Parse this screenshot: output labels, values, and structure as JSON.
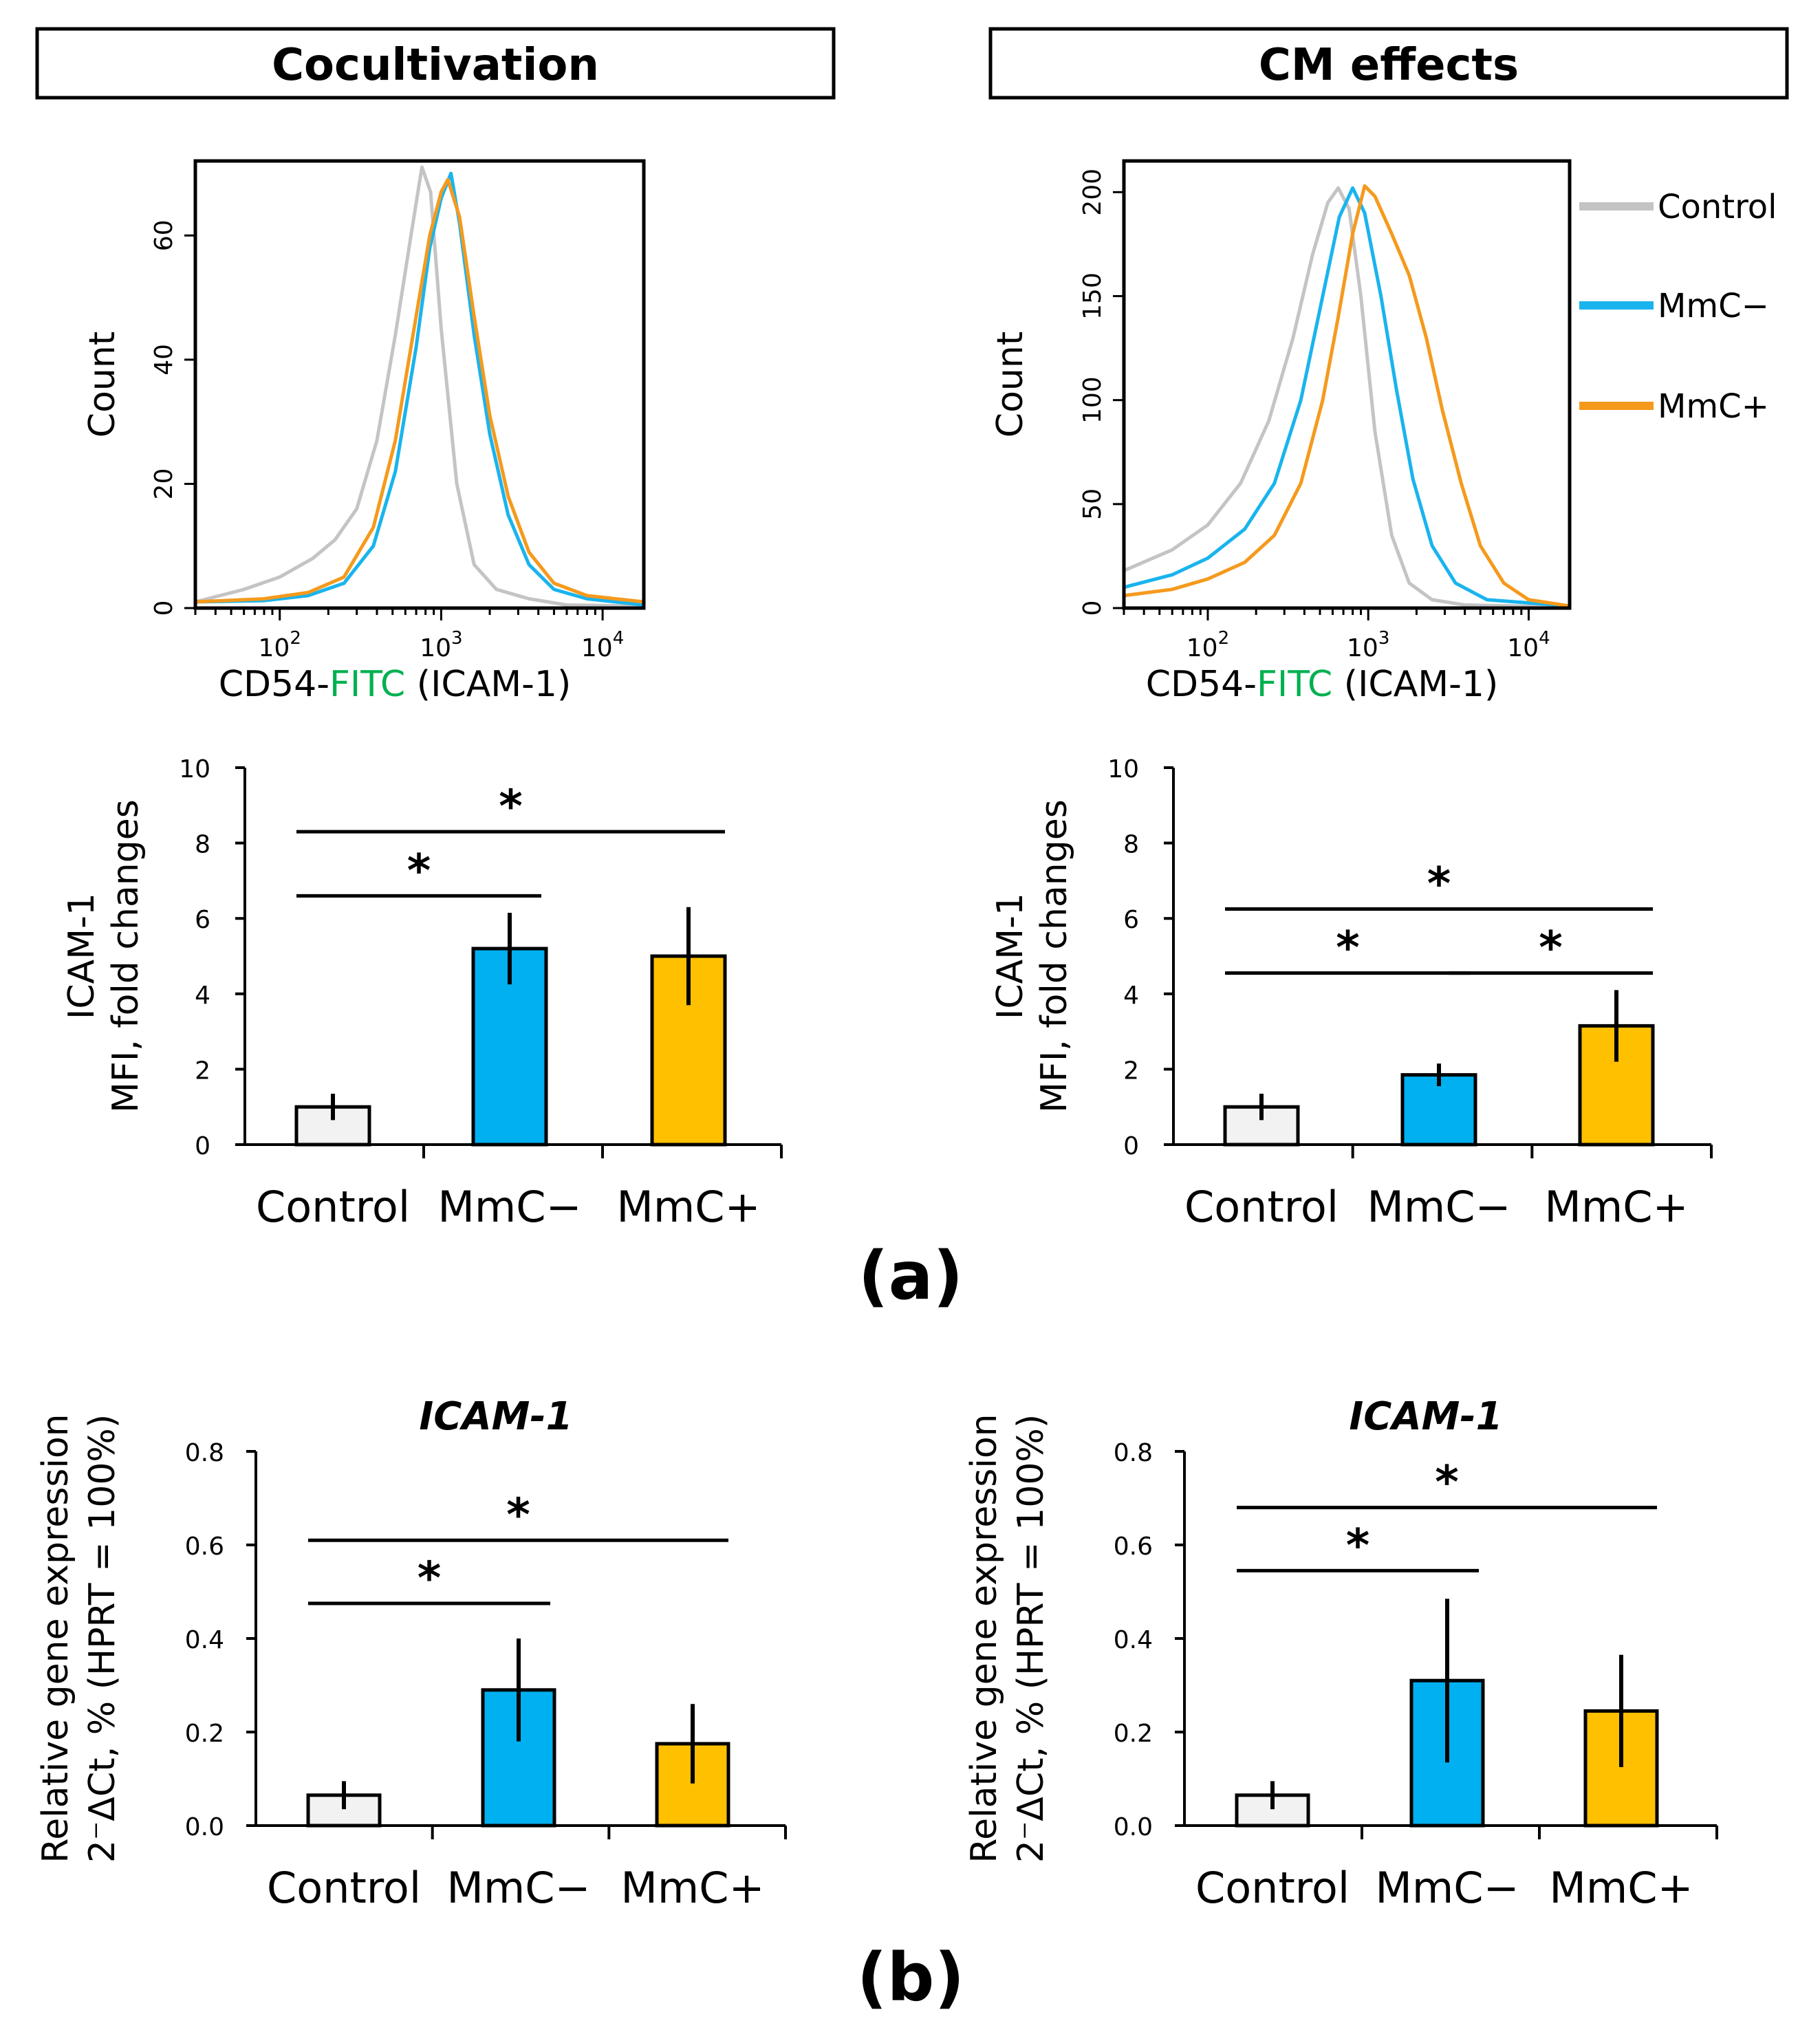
{
  "panel_a_label": "(a)",
  "panel_b_label": "(b)",
  "colors": {
    "control_line": "#c4c4c4",
    "mmc_minus_line": "#19b4ee",
    "mmc_plus_line": "#f59a1d",
    "control_bar": "#f2f2f2",
    "mmc_minus_bar": "#00b0f0",
    "mmc_plus_bar": "#ffc000"
  },
  "chart_data": [
    {
      "id": "hist-coculture",
      "type": "line",
      "panel_title": "Cocultivation",
      "xlabel_parts": [
        "CD54-",
        "FITC",
        " (ICAM-1)"
      ],
      "xlabel_colors": [
        "#000000",
        "#00b050",
        "#000000"
      ],
      "ylabel": "Count",
      "x_scale": "log",
      "xlim": [
        30,
        18000
      ],
      "ylim": [
        0,
        72
      ],
      "x_ticks": [
        {
          "value": 100,
          "label": "10",
          "exp": "2"
        },
        {
          "value": 1000,
          "label": "10",
          "exp": "3"
        },
        {
          "value": 10000,
          "label": "10",
          "exp": "4"
        }
      ],
      "y_ticks": [
        0,
        20,
        40,
        60
      ],
      "series": [
        {
          "name": "Control",
          "color": "#c4c4c4",
          "points": [
            [
              30,
              1
            ],
            [
              60,
              3
            ],
            [
              100,
              5
            ],
            [
              160,
              8
            ],
            [
              220,
              11
            ],
            [
              300,
              16
            ],
            [
              400,
              27
            ],
            [
              520,
              44
            ],
            [
              650,
              60
            ],
            [
              760,
              71
            ],
            [
              860,
              67
            ],
            [
              1000,
              45
            ],
            [
              1250,
              20
            ],
            [
              1600,
              7
            ],
            [
              2200,
              3
            ],
            [
              3500,
              1.5
            ],
            [
              6000,
              0.5
            ],
            [
              18000,
              0.3
            ]
          ]
        },
        {
          "name": "MmC−",
          "color": "#19b4ee",
          "points": [
            [
              30,
              1
            ],
            [
              80,
              1.2
            ],
            [
              150,
              2
            ],
            [
              250,
              4
            ],
            [
              380,
              10
            ],
            [
              520,
              22
            ],
            [
              700,
              42
            ],
            [
              850,
              58
            ],
            [
              1000,
              66
            ],
            [
              1150,
              70
            ],
            [
              1300,
              62
            ],
            [
              1600,
              44
            ],
            [
              2000,
              28
            ],
            [
              2600,
              15
            ],
            [
              3500,
              7
            ],
            [
              5000,
              3
            ],
            [
              8000,
              1.5
            ],
            [
              18000,
              0.5
            ]
          ]
        },
        {
          "name": "MmC+",
          "color": "#f59a1d",
          "points": [
            [
              30,
              1
            ],
            [
              80,
              1.5
            ],
            [
              150,
              2.5
            ],
            [
              250,
              5
            ],
            [
              380,
              13
            ],
            [
              520,
              27
            ],
            [
              700,
              47
            ],
            [
              850,
              60
            ],
            [
              1000,
              67
            ],
            [
              1100,
              69
            ],
            [
              1300,
              63
            ],
            [
              1600,
              47
            ],
            [
              2000,
              31
            ],
            [
              2600,
              18
            ],
            [
              3500,
              9
            ],
            [
              5000,
              4
            ],
            [
              8000,
              2
            ],
            [
              18000,
              1
            ]
          ]
        }
      ]
    },
    {
      "id": "hist-cm",
      "type": "line",
      "panel_title": "CM effects",
      "xlabel_parts": [
        "CD54-",
        "FITC",
        " (ICAM-1)"
      ],
      "xlabel_colors": [
        "#000000",
        "#00b050",
        "#000000"
      ],
      "ylabel": "Count",
      "x_scale": "log",
      "xlim": [
        30,
        18000
      ],
      "ylim": [
        0,
        215
      ],
      "x_ticks": [
        {
          "value": 100,
          "label": "10",
          "exp": "2"
        },
        {
          "value": 1000,
          "label": "10",
          "exp": "3"
        },
        {
          "value": 10000,
          "label": "10",
          "exp": "4"
        }
      ],
      "y_ticks": [
        0,
        50,
        100,
        150,
        200
      ],
      "legend": [
        "Control",
        "MmC−",
        "MmC+"
      ],
      "series": [
        {
          "name": "Control",
          "color": "#c4c4c4",
          "points": [
            [
              30,
              18
            ],
            [
              60,
              28
            ],
            [
              100,
              40
            ],
            [
              160,
              60
            ],
            [
              240,
              90
            ],
            [
              340,
              130
            ],
            [
              450,
              170
            ],
            [
              560,
              195
            ],
            [
              650,
              202
            ],
            [
              760,
              192
            ],
            [
              900,
              150
            ],
            [
              1100,
              85
            ],
            [
              1400,
              35
            ],
            [
              1800,
              12
            ],
            [
              2500,
              4
            ],
            [
              4000,
              1.5
            ],
            [
              18000,
              0.5
            ]
          ]
        },
        {
          "name": "MmC−",
          "color": "#19b4ee",
          "points": [
            [
              30,
              10
            ],
            [
              60,
              16
            ],
            [
              100,
              24
            ],
            [
              170,
              38
            ],
            [
              260,
              60
            ],
            [
              380,
              100
            ],
            [
              520,
              150
            ],
            [
              660,
              188
            ],
            [
              800,
              202
            ],
            [
              950,
              190
            ],
            [
              1200,
              150
            ],
            [
              1500,
              105
            ],
            [
              1900,
              62
            ],
            [
              2500,
              30
            ],
            [
              3500,
              12
            ],
            [
              5500,
              4
            ],
            [
              18000,
              1
            ]
          ]
        },
        {
          "name": "MmC+",
          "color": "#f59a1d",
          "points": [
            [
              30,
              6
            ],
            [
              60,
              9
            ],
            [
              100,
              14
            ],
            [
              170,
              22
            ],
            [
              260,
              35
            ],
            [
              380,
              60
            ],
            [
              520,
              100
            ],
            [
              650,
              140
            ],
            [
              800,
              180
            ],
            [
              950,
              203
            ],
            [
              1100,
              198
            ],
            [
              1400,
              180
            ],
            [
              1800,
              160
            ],
            [
              2300,
              130
            ],
            [
              2900,
              95
            ],
            [
              3800,
              60
            ],
            [
              5000,
              30
            ],
            [
              7000,
              12
            ],
            [
              10000,
              4
            ],
            [
              18000,
              1
            ]
          ]
        }
      ]
    },
    {
      "id": "bar-a-left",
      "type": "bar",
      "categories": [
        "Control",
        "MmC−",
        "MmC+"
      ],
      "values": [
        1.0,
        5.2,
        5.0
      ],
      "errors": [
        0.35,
        0.95,
        1.3
      ],
      "ylabel_lines": [
        "ICAM-1",
        "MFI, fold changes"
      ],
      "ylim": [
        0,
        10
      ],
      "y_ticks": [
        0,
        2,
        4,
        6,
        8,
        10
      ],
      "significance": [
        {
          "from": 0,
          "to": 1,
          "level": 6.6,
          "label": "*"
        },
        {
          "from": 0,
          "to": 2,
          "level": 8.3,
          "label": "*"
        }
      ]
    },
    {
      "id": "bar-a-right",
      "type": "bar",
      "categories": [
        "Control",
        "MmC−",
        "MmC+"
      ],
      "values": [
        1.0,
        1.85,
        3.15
      ],
      "errors": [
        0.35,
        0.3,
        0.95
      ],
      "ylabel_lines": [
        "ICAM-1",
        "MFI, fold changes"
      ],
      "ylim": [
        0,
        10
      ],
      "y_ticks": [
        0,
        2,
        4,
        6,
        8,
        10
      ],
      "significance": [
        {
          "from": 0,
          "to": 1,
          "level": 4.55,
          "label": "*"
        },
        {
          "from": 1,
          "to": 2,
          "level": 4.55,
          "label": "*"
        },
        {
          "from": 0,
          "to": 2,
          "level": 6.25,
          "label": "*"
        }
      ]
    },
    {
      "id": "bar-b-left",
      "type": "bar",
      "title": "ICAM-1",
      "categories": [
        "Control",
        "MmC−",
        "MmC+"
      ],
      "values": [
        0.065,
        0.29,
        0.175
      ],
      "errors": [
        0.03,
        0.11,
        0.085
      ],
      "ylabel_lines": [
        "Relative gene expression",
        "2⁻ΔCt, % (HPRT = 100%)"
      ],
      "ylim": [
        0,
        0.8
      ],
      "y_ticks": [
        0.0,
        0.2,
        0.4,
        0.6,
        0.8
      ],
      "y_tick_labels": [
        "0.0",
        "0.2",
        "0.4",
        "0.6",
        "0.8"
      ],
      "significance": [
        {
          "from": 0,
          "to": 1,
          "level": 0.475,
          "label": "*"
        },
        {
          "from": 0,
          "to": 2,
          "level": 0.61,
          "label": "*"
        }
      ]
    },
    {
      "id": "bar-b-right",
      "type": "bar",
      "title": "ICAM-1",
      "categories": [
        "Control",
        "MmC−",
        "MmC+"
      ],
      "values": [
        0.065,
        0.31,
        0.245
      ],
      "errors": [
        0.03,
        0.175,
        0.12
      ],
      "ylabel_lines": [
        "Relative gene expression",
        "2⁻ΔCt, % (HPRT = 100%)"
      ],
      "ylim": [
        0,
        0.8
      ],
      "y_ticks": [
        0.0,
        0.2,
        0.4,
        0.6,
        0.8
      ],
      "y_tick_labels": [
        "0.0",
        "0.2",
        "0.4",
        "0.6",
        "0.8"
      ],
      "significance": [
        {
          "from": 0,
          "to": 1,
          "level": 0.545,
          "label": "*"
        },
        {
          "from": 0,
          "to": 2,
          "level": 0.68,
          "label": "*"
        }
      ]
    }
  ]
}
